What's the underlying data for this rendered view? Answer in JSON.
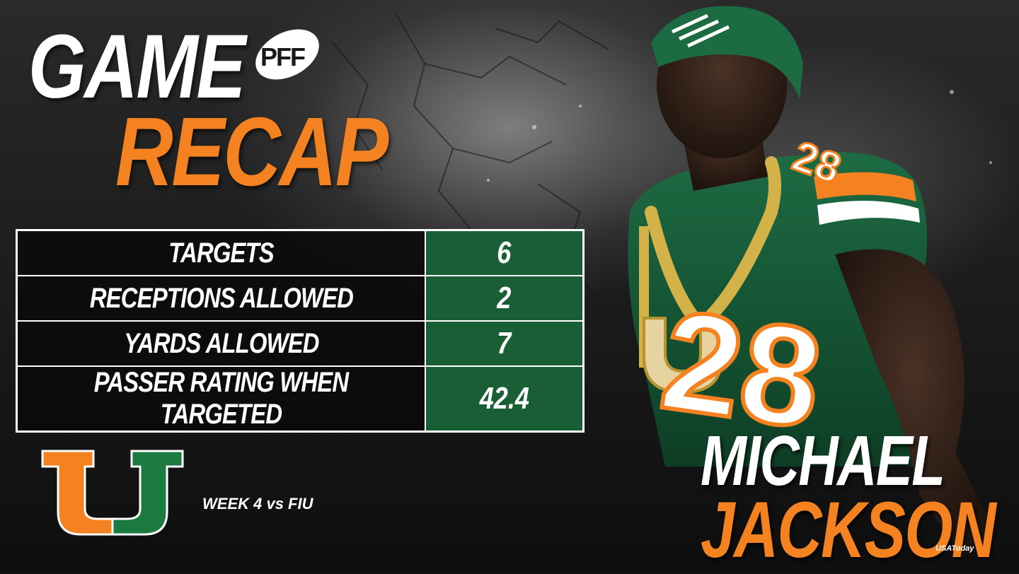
{
  "header": {
    "title_line1": "GAME",
    "title_line2": "RECAP",
    "brand_logo_text": "PFF"
  },
  "stats": [
    {
      "label": "TARGETS",
      "value": "6"
    },
    {
      "label": "RECEPTIONS ALLOWED",
      "value": "2"
    },
    {
      "label": "YARDS ALLOWED",
      "value": "7"
    },
    {
      "label": "PASSER RATING WHEN TARGETED",
      "value": "42.4"
    }
  ],
  "game": {
    "week_text": "WEEK 4 vs FIU"
  },
  "player": {
    "first_name": "MICHAEL",
    "last_name": "JACKSON",
    "jersey_number": "28"
  },
  "photo_credit": "USAToday",
  "colors": {
    "accent_orange": "#f58220",
    "team_green": "#1a5e36",
    "text_white": "#ffffff",
    "background": "#141414"
  },
  "icons": [
    "pff-football-logo",
    "miami-u-logo",
    "player-photo"
  ]
}
